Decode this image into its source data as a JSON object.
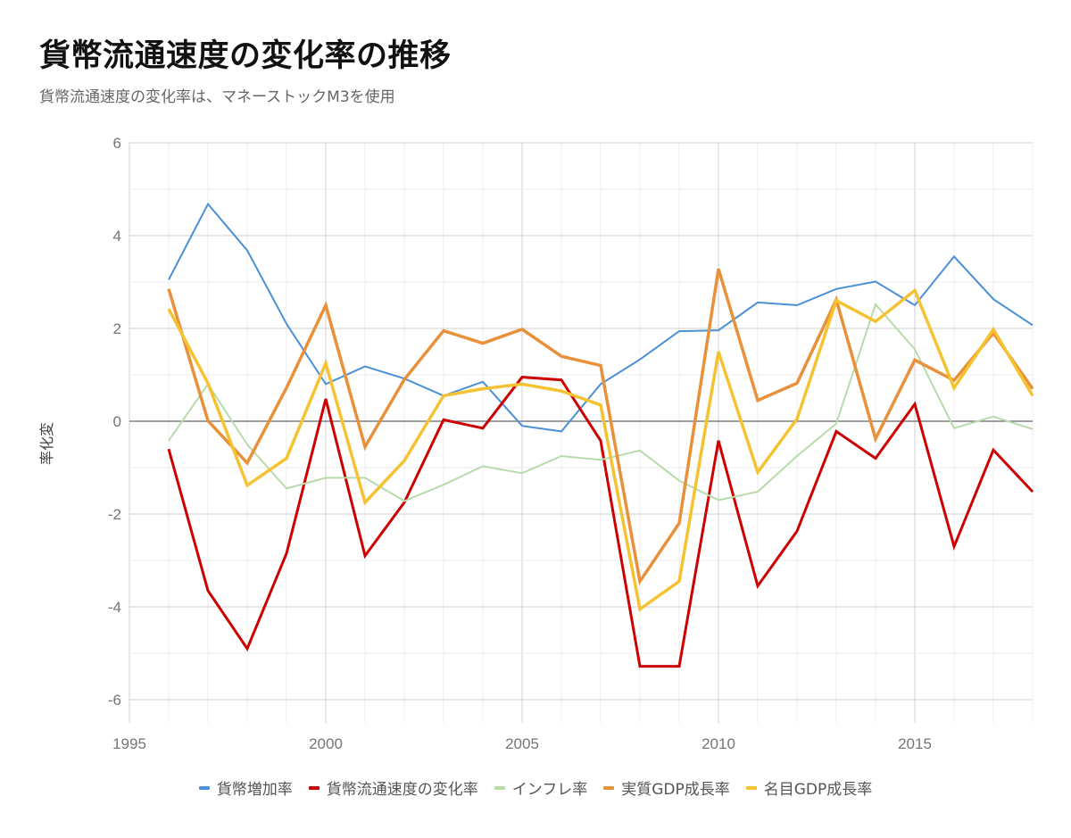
{
  "header": {
    "title": "貨幣流通速度の変化率の推移",
    "subtitle": "貨幣流通速度の変化率は、マネーストックM3を使用"
  },
  "chart_data": {
    "type": "line",
    "title": "貨幣流通速度の変化率の推移",
    "subtitle": "貨幣流通速度の変化率は、マネーストックM3を使用",
    "xlabel": "",
    "ylabel": "率化変",
    "xlim": [
      1995,
      2018
    ],
    "ylim": [
      -6.5,
      6
    ],
    "x_ticks": [
      1995,
      2000,
      2005,
      2010,
      2015
    ],
    "y_ticks": [
      6,
      4,
      2,
      0,
      -2,
      -4,
      -6
    ],
    "grid": true,
    "legend_position": "bottom",
    "x": [
      1996,
      1997,
      1998,
      1999,
      2000,
      2001,
      2002,
      2003,
      2004,
      2005,
      2006,
      2007,
      2008,
      2009,
      2010,
      2011,
      2012,
      2013,
      2014,
      2015,
      2016,
      2017,
      2018
    ],
    "series": [
      {
        "name": "貨幣増加率",
        "color": "#4a90d6",
        "width": 2,
        "values": [
          3.05,
          4.68,
          3.68,
          2.1,
          0.8,
          1.18,
          0.92,
          0.55,
          0.85,
          -0.1,
          -0.22,
          0.8,
          1.33,
          1.94,
          1.96,
          2.56,
          2.5,
          2.85,
          3.01,
          2.5,
          3.55,
          2.63,
          2.07
        ]
      },
      {
        "name": "貨幣流通速度の変化率",
        "color": "#cc0000",
        "width": 3,
        "values": [
          -0.6,
          -3.65,
          -4.9,
          -2.85,
          0.48,
          -2.9,
          -1.75,
          0.03,
          -0.15,
          0.95,
          0.89,
          -0.42,
          -5.28,
          -5.28,
          -0.42,
          -3.55,
          -2.37,
          -0.22,
          -0.8,
          0.37,
          -2.7,
          -0.62,
          -1.52
        ]
      },
      {
        "name": "インフレ率",
        "color": "#b7dbaa",
        "width": 2,
        "values": [
          -0.42,
          0.8,
          -0.5,
          -1.45,
          -1.22,
          -1.22,
          -1.72,
          -1.37,
          -0.97,
          -1.12,
          -0.75,
          -0.83,
          -0.63,
          -1.28,
          -1.7,
          -1.52,
          -0.75,
          -0.05,
          2.52,
          1.55,
          -0.15,
          0.1,
          -0.17
        ]
      },
      {
        "name": "実質GDP成長率",
        "color": "#e8903a",
        "width": 3.5,
        "values": [
          2.85,
          0.01,
          -0.9,
          0.72,
          2.5,
          -0.55,
          0.9,
          1.95,
          1.68,
          1.98,
          1.4,
          1.2,
          -3.45,
          -2.2,
          3.28,
          0.45,
          0.82,
          2.62,
          -0.38,
          1.32,
          0.88,
          1.9,
          0.7
        ]
      },
      {
        "name": "名目GDP成長率",
        "color": "#f5c332",
        "width": 3.5,
        "values": [
          2.42,
          0.82,
          -1.38,
          -0.8,
          1.25,
          -1.75,
          -0.85,
          0.55,
          0.7,
          0.8,
          0.65,
          0.35,
          -4.05,
          -3.45,
          1.5,
          -1.1,
          0.05,
          2.6,
          2.15,
          2.82,
          0.72,
          1.98,
          0.55
        ]
      }
    ]
  }
}
